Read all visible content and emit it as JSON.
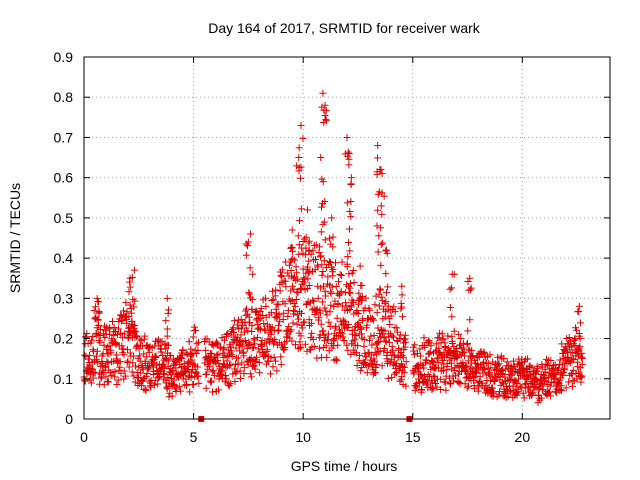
{
  "chart_data": {
    "type": "scatter",
    "title": "Day 164 of 2017, SRMTID for receiver wark",
    "xlabel": "GPS time / hours",
    "ylabel": "SRMTID / TECUs",
    "xlim": [
      0,
      24
    ],
    "ylim": [
      0,
      0.9
    ],
    "xticks": [
      0,
      5,
      10,
      15,
      20
    ],
    "yticks": [
      0,
      0.1,
      0.2,
      0.3,
      0.4,
      0.5,
      0.6,
      0.7,
      0.8,
      0.9
    ],
    "grid": true,
    "marker": "+",
    "color": "#e00000",
    "series": [
      {
        "name": "SRMTID",
        "x_start": 0.0,
        "x_step": 0.0125,
        "x_end": 22.75,
        "baseline_profile": [
          [
            0.0,
            0.14
          ],
          [
            0.5,
            0.19
          ],
          [
            1.0,
            0.15
          ],
          [
            1.5,
            0.17
          ],
          [
            2.0,
            0.2
          ],
          [
            2.5,
            0.14
          ],
          [
            3.0,
            0.13
          ],
          [
            3.5,
            0.14
          ],
          [
            4.0,
            0.11
          ],
          [
            4.5,
            0.12
          ],
          [
            5.0,
            0.16
          ],
          [
            5.5,
            0.14
          ],
          [
            6.0,
            0.13
          ],
          [
            6.5,
            0.15
          ],
          [
            7.0,
            0.17
          ],
          [
            7.5,
            0.19
          ],
          [
            8.0,
            0.2
          ],
          [
            8.5,
            0.22
          ],
          [
            9.0,
            0.25
          ],
          [
            9.5,
            0.3
          ],
          [
            10.0,
            0.32
          ],
          [
            10.5,
            0.3
          ],
          [
            11.0,
            0.28
          ],
          [
            11.5,
            0.26
          ],
          [
            12.0,
            0.27
          ],
          [
            12.5,
            0.23
          ],
          [
            13.0,
            0.2
          ],
          [
            13.5,
            0.22
          ],
          [
            14.0,
            0.2
          ],
          [
            14.5,
            0.15
          ],
          [
            15.0,
            0.13
          ],
          [
            15.5,
            0.14
          ],
          [
            16.0,
            0.13
          ],
          [
            16.5,
            0.15
          ],
          [
            17.0,
            0.14
          ],
          [
            17.5,
            0.13
          ],
          [
            18.0,
            0.12
          ],
          [
            18.5,
            0.11
          ],
          [
            19.0,
            0.1
          ],
          [
            19.5,
            0.1
          ],
          [
            20.0,
            0.1
          ],
          [
            20.5,
            0.09
          ],
          [
            21.0,
            0.1
          ],
          [
            21.5,
            0.1
          ],
          [
            22.0,
            0.14
          ],
          [
            22.5,
            0.15
          ],
          [
            22.75,
            0.15
          ]
        ],
        "peaks": [
          {
            "x": 0.6,
            "y": 0.3
          },
          {
            "x": 2.1,
            "y": 0.35
          },
          {
            "x": 2.3,
            "y": 0.37
          },
          {
            "x": 3.8,
            "y": 0.3
          },
          {
            "x": 7.6,
            "y": 0.46
          },
          {
            "x": 7.5,
            "y": 0.44
          },
          {
            "x": 9.5,
            "y": 0.47
          },
          {
            "x": 9.8,
            "y": 0.65
          },
          {
            "x": 9.9,
            "y": 0.73
          },
          {
            "x": 10.2,
            "y": 0.52
          },
          {
            "x": 10.8,
            "y": 0.65
          },
          {
            "x": 10.9,
            "y": 0.81
          },
          {
            "x": 11.0,
            "y": 0.78
          },
          {
            "x": 11.3,
            "y": 0.5
          },
          {
            "x": 12.0,
            "y": 0.7
          },
          {
            "x": 12.1,
            "y": 0.66
          },
          {
            "x": 12.2,
            "y": 0.6
          },
          {
            "x": 12.6,
            "y": 0.38
          },
          {
            "x": 13.4,
            "y": 0.68
          },
          {
            "x": 13.5,
            "y": 0.62
          },
          {
            "x": 13.6,
            "y": 0.61
          },
          {
            "x": 13.8,
            "y": 0.42
          },
          {
            "x": 14.5,
            "y": 0.33
          },
          {
            "x": 16.8,
            "y": 0.36
          },
          {
            "x": 17.6,
            "y": 0.35
          },
          {
            "x": 22.6,
            "y": 0.28
          }
        ]
      }
    ],
    "zero_markers": [
      {
        "x": 5.35,
        "y": 0
      },
      {
        "x": 14.85,
        "y": 0
      }
    ]
  }
}
